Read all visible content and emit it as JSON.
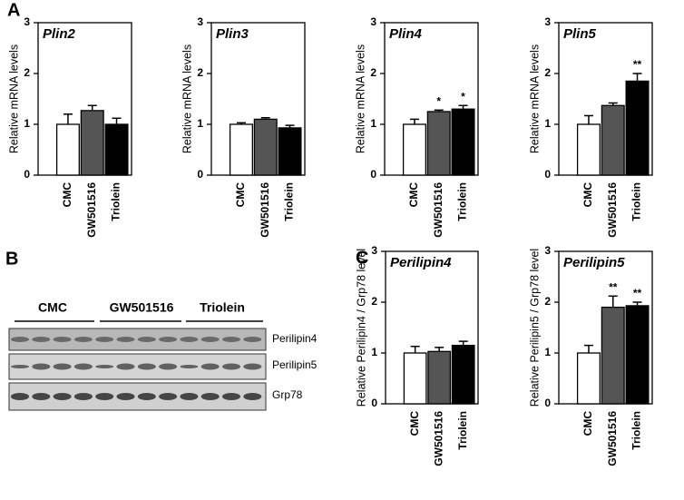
{
  "panel_labels": [
    "A",
    "B",
    "C"
  ],
  "blot": {
    "groups": [
      "CMC",
      "GW501516",
      "Triolein"
    ],
    "bands": [
      "Perilipin4",
      "Perilipin5",
      "Grp78"
    ]
  },
  "chart_data": [
    {
      "type": "bar",
      "title": "Plin2",
      "ylabel": "Relative mRNA levels",
      "categories": [
        "CMC",
        "GW501516",
        "Triolein"
      ],
      "values": [
        1.0,
        1.27,
        1.0
      ],
      "errors": [
        0.2,
        0.1,
        0.12
      ],
      "annotations": [
        null,
        null,
        null
      ],
      "colors": [
        "#ffffff",
        "#555555",
        "#000000"
      ],
      "ylim": [
        0,
        3
      ],
      "yticks": [
        0,
        1,
        2,
        3
      ]
    },
    {
      "type": "bar",
      "title": "Plin3",
      "ylabel": "Relative mRNA levels",
      "categories": [
        "CMC",
        "GW501516",
        "Triolein"
      ],
      "values": [
        1.0,
        1.1,
        0.93
      ],
      "errors": [
        0.03,
        0.03,
        0.05
      ],
      "annotations": [
        null,
        null,
        null
      ],
      "colors": [
        "#ffffff",
        "#555555",
        "#000000"
      ],
      "ylim": [
        0,
        3
      ],
      "yticks": [
        0,
        1,
        2,
        3
      ]
    },
    {
      "type": "bar",
      "title": "Plin4",
      "ylabel": "Relative mRNA levels",
      "categories": [
        "CMC",
        "GW501516",
        "Triolein"
      ],
      "values": [
        1.0,
        1.25,
        1.3
      ],
      "errors": [
        0.1,
        0.03,
        0.07
      ],
      "annotations": [
        null,
        "*",
        "*"
      ],
      "colors": [
        "#ffffff",
        "#555555",
        "#000000"
      ],
      "ylim": [
        0,
        3
      ],
      "yticks": [
        0,
        1,
        2,
        3
      ]
    },
    {
      "type": "bar",
      "title": "Plin5",
      "ylabel": "Relative mRNA levels",
      "categories": [
        "CMC",
        "GW501516",
        "Triolein"
      ],
      "values": [
        1.0,
        1.37,
        1.85
      ],
      "errors": [
        0.17,
        0.05,
        0.15
      ],
      "annotations": [
        null,
        null,
        "**"
      ],
      "colors": [
        "#ffffff",
        "#555555",
        "#000000"
      ],
      "ylim": [
        0,
        3
      ],
      "yticks": [
        0,
        1,
        2,
        3
      ]
    },
    {
      "type": "bar",
      "title": "Perilipin4",
      "ylabel": "Relative Perilipin4 / Grp78 level",
      "categories": [
        "CMC",
        "GW501516",
        "Triolein"
      ],
      "values": [
        1.0,
        1.03,
        1.15
      ],
      "errors": [
        0.13,
        0.08,
        0.08
      ],
      "annotations": [
        null,
        null,
        null
      ],
      "colors": [
        "#ffffff",
        "#555555",
        "#000000"
      ],
      "ylim": [
        0,
        3
      ],
      "yticks": [
        0,
        1,
        2,
        3
      ]
    },
    {
      "type": "bar",
      "title": "Perilipin5",
      "ylabel": "Relative Perilipin5 / Grp78 level",
      "categories": [
        "CMC",
        "GW501516",
        "Triolein"
      ],
      "values": [
        1.0,
        1.9,
        1.93
      ],
      "errors": [
        0.15,
        0.22,
        0.07
      ],
      "annotations": [
        null,
        "**",
        "**"
      ],
      "colors": [
        "#ffffff",
        "#555555",
        "#000000"
      ],
      "ylim": [
        0,
        3
      ],
      "yticks": [
        0,
        1,
        2,
        3
      ]
    }
  ]
}
